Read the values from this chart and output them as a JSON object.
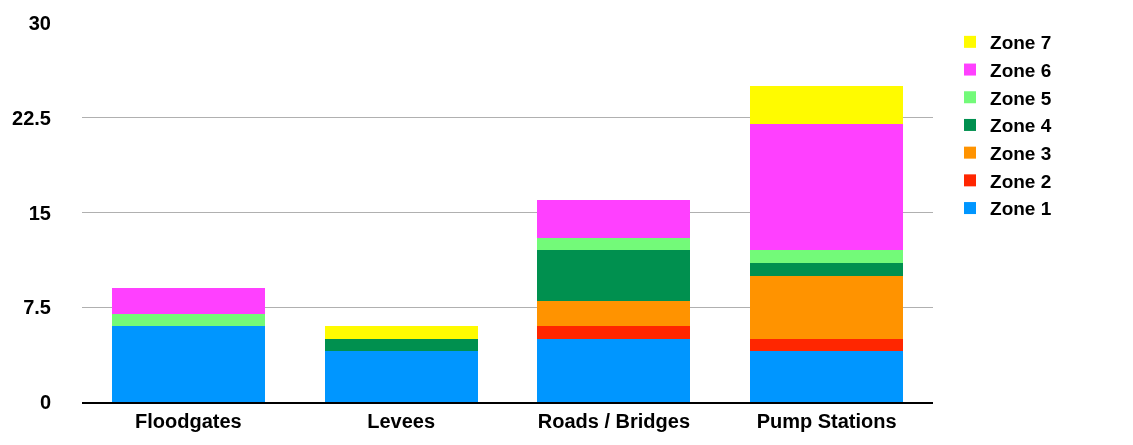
{
  "chart_data": {
    "type": "bar",
    "stacked": true,
    "categories": [
      "Floodgates",
      "Levees",
      "Roads / Bridges",
      "Pump Stations"
    ],
    "series": [
      {
        "name": "Zone 1",
        "color": "#0096ff",
        "values": [
          6,
          4,
          5,
          4
        ]
      },
      {
        "name": "Zone 2",
        "color": "#ff2600",
        "values": [
          null,
          null,
          1,
          1
        ]
      },
      {
        "name": "Zone 3",
        "color": "#ff9300",
        "values": [
          null,
          null,
          2,
          5
        ]
      },
      {
        "name": "Zone 4",
        "color": "#00904f",
        "values": [
          null,
          1,
          4,
          1
        ]
      },
      {
        "name": "Zone 5",
        "color": "#73fa79",
        "values": [
          1,
          null,
          1,
          1
        ]
      },
      {
        "name": "Zone 6",
        "color": "#ff40ff",
        "values": [
          2,
          null,
          3,
          10
        ]
      },
      {
        "name": "Zone 7",
        "color": "#fffb00",
        "values": [
          null,
          1,
          null,
          3
        ]
      }
    ],
    "ylim": [
      0,
      30
    ],
    "yticks": [
      0,
      7.5,
      15,
      22.5,
      30
    ],
    "grid": "y",
    "legend": "top right"
  }
}
